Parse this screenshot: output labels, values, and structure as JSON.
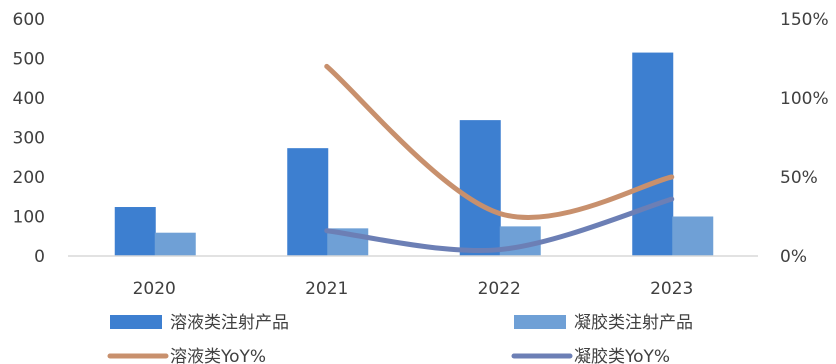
{
  "chart_data": {
    "type": "bar",
    "categories": [
      "2020",
      "2021",
      "2022",
      "2023"
    ],
    "series": [
      {
        "name": "溶液类注射产品",
        "kind": "bar",
        "axis": "left",
        "color": "#3d7fd0",
        "values": [
          124,
          273,
          344,
          515
        ]
      },
      {
        "name": "凝胶类注射产品",
        "kind": "bar",
        "axis": "left",
        "color": "#6fa0d6",
        "values": [
          59,
          70,
          75,
          100
        ]
      },
      {
        "name": "溶液类YoY%",
        "kind": "line",
        "axis": "right",
        "color": "#c8906d",
        "values": [
          null,
          120,
          27,
          50
        ]
      },
      {
        "name": "凝胶类YoY%",
        "kind": "line",
        "axis": "right",
        "color": "#6c7fb5",
        "values": [
          null,
          16,
          4,
          36
        ]
      }
    ],
    "y_left": {
      "lim": [
        0,
        600
      ],
      "ticks": [
        "0",
        "100",
        "200",
        "300",
        "400",
        "500",
        "600"
      ]
    },
    "y_right": {
      "lim": [
        0,
        150
      ],
      "ticks": [
        "0%",
        "50%",
        "100%",
        "150%"
      ]
    },
    "legend_position": "bottom",
    "grid": false
  }
}
